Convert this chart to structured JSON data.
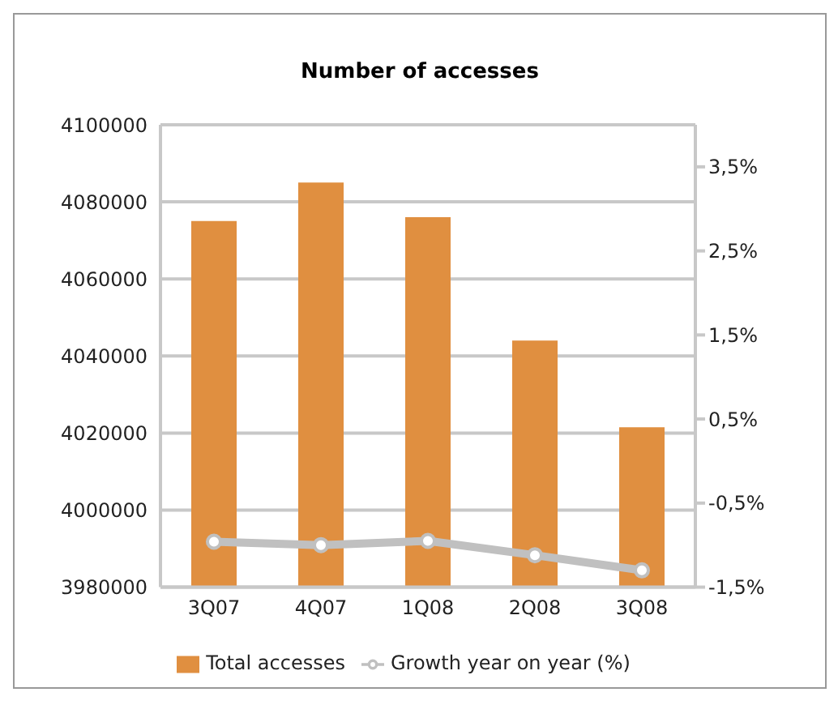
{
  "chart_data": {
    "type": "bar",
    "title": "Number of accesses",
    "categories": [
      "3Q07",
      "4Q07",
      "1Q08",
      "2Q08",
      "3Q08"
    ],
    "series": [
      {
        "name": "Total accesses",
        "color": "#e08f40",
        "values": [
          4075000,
          4085000,
          4076000,
          4044000,
          4021500
        ]
      },
      {
        "name": "Growth year on year (%)",
        "type": "line",
        "axis": "y2",
        "color": "#c0c0c0",
        "marker": "circle",
        "values": [
          -0.96,
          -1.0,
          -0.95,
          -1.12,
          -1.3
        ]
      }
    ],
    "ylim": [
      3980000,
      4100000
    ],
    "yticks": [
      3980000,
      4000000,
      4020000,
      4040000,
      4060000,
      4080000,
      4100000
    ],
    "y2lim": [
      -1.5,
      4.0
    ],
    "y2ticks": [
      {
        "value": -1.5,
        "label": "-1,5%"
      },
      {
        "value": -0.5,
        "label": "-0,5%"
      },
      {
        "value": 0.5,
        "label": "0,5%"
      },
      {
        "value": 1.5,
        "label": "1,5%"
      },
      {
        "value": 2.5,
        "label": "2,5%"
      },
      {
        "value": 3.5,
        "label": "3,5%"
      }
    ],
    "grid": "y",
    "legend": "bottom"
  }
}
